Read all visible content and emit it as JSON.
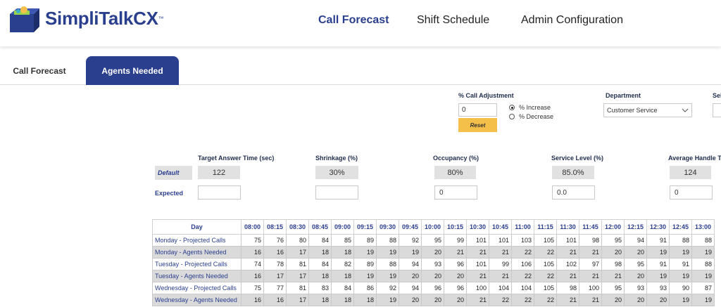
{
  "app": {
    "brand": "SimpliTalkCX",
    "tm": "™"
  },
  "nav": {
    "items": [
      {
        "label": "Call Forecast",
        "active": true
      },
      {
        "label": "Shift Schedule",
        "active": false
      },
      {
        "label": "Admin Configuration",
        "active": false
      }
    ]
  },
  "subtabs": {
    "call_forecast": "Call Forecast",
    "agents_needed": "Agents Needed"
  },
  "controls": {
    "call_adjustment_label": "% Call Adjustment",
    "call_adjustment_value": "0",
    "reset_label": "Reset",
    "radio_increase": "% Increase",
    "radio_decrease": "% Decrease",
    "department_label": "Department",
    "department_value": "Customer Service",
    "cut_label": "Sel"
  },
  "metrics": {
    "default_label": "Default",
    "expected_label": "Expected",
    "target_answer": {
      "title": "Target Answer Time (sec)",
      "default": "122",
      "expected": ""
    },
    "shrinkage": {
      "title": "Shrinkage (%)",
      "default": "30%",
      "expected": ""
    },
    "occupancy": {
      "title": "Occupancy (%)",
      "default": "80%",
      "expected": "0"
    },
    "service_level": {
      "title": "Service Level (%)",
      "default": "85.0%",
      "expected": "0.0"
    },
    "aht": {
      "title": "Average Handle T",
      "default": "124",
      "expected": "0"
    }
  },
  "table": {
    "day_header": "Day",
    "times": [
      "08:00",
      "08:15",
      "08:30",
      "08:45",
      "09:00",
      "09:15",
      "09:30",
      "09:45",
      "10:00",
      "10:15",
      "10:30",
      "10:45",
      "11:00",
      "11:15",
      "11:30",
      "11:45",
      "12:00",
      "12:15",
      "12:30",
      "12:45",
      "13:00"
    ],
    "rows": [
      {
        "day": "Monday - Projected Calls",
        "gray": false,
        "values": [
          "75",
          "76",
          "80",
          "84",
          "85",
          "89",
          "88",
          "92",
          "95",
          "99",
          "101",
          "101",
          "103",
          "105",
          "101",
          "98",
          "95",
          "94",
          "91",
          "88",
          "88"
        ]
      },
      {
        "day": "Monday - Agents Needed",
        "gray": true,
        "values": [
          "16",
          "16",
          "17",
          "18",
          "18",
          "19",
          "19",
          "19",
          "20",
          "21",
          "21",
          "21",
          "22",
          "22",
          "21",
          "21",
          "20",
          "20",
          "19",
          "19",
          "19"
        ]
      },
      {
        "day": "Tuesday - Projected Calls",
        "gray": false,
        "values": [
          "74",
          "78",
          "81",
          "84",
          "82",
          "89",
          "88",
          "94",
          "93",
          "96",
          "101",
          "99",
          "106",
          "105",
          "102",
          "97",
          "98",
          "95",
          "91",
          "91",
          "88"
        ]
      },
      {
        "day": "Tuesday - Agents Needed",
        "gray": true,
        "values": [
          "16",
          "17",
          "17",
          "18",
          "18",
          "19",
          "19",
          "20",
          "20",
          "20",
          "21",
          "21",
          "22",
          "22",
          "21",
          "21",
          "21",
          "20",
          "19",
          "19",
          "19"
        ]
      },
      {
        "day": "Wednesday - Projected Calls",
        "gray": false,
        "values": [
          "75",
          "77",
          "81",
          "83",
          "84",
          "86",
          "92",
          "94",
          "96",
          "96",
          "100",
          "104",
          "104",
          "105",
          "98",
          "100",
          "95",
          "93",
          "93",
          "90",
          "87"
        ]
      },
      {
        "day": "Wednesday - Agents Needed",
        "gray": true,
        "values": [
          "16",
          "16",
          "17",
          "18",
          "18",
          "18",
          "19",
          "20",
          "20",
          "20",
          "21",
          "22",
          "22",
          "22",
          "21",
          "21",
          "20",
          "20",
          "20",
          "19",
          "19"
        ]
      }
    ]
  },
  "colors": {
    "brand": "#2a3f8e",
    "reset": "#f5c04a",
    "gray_row": "#dadada"
  }
}
